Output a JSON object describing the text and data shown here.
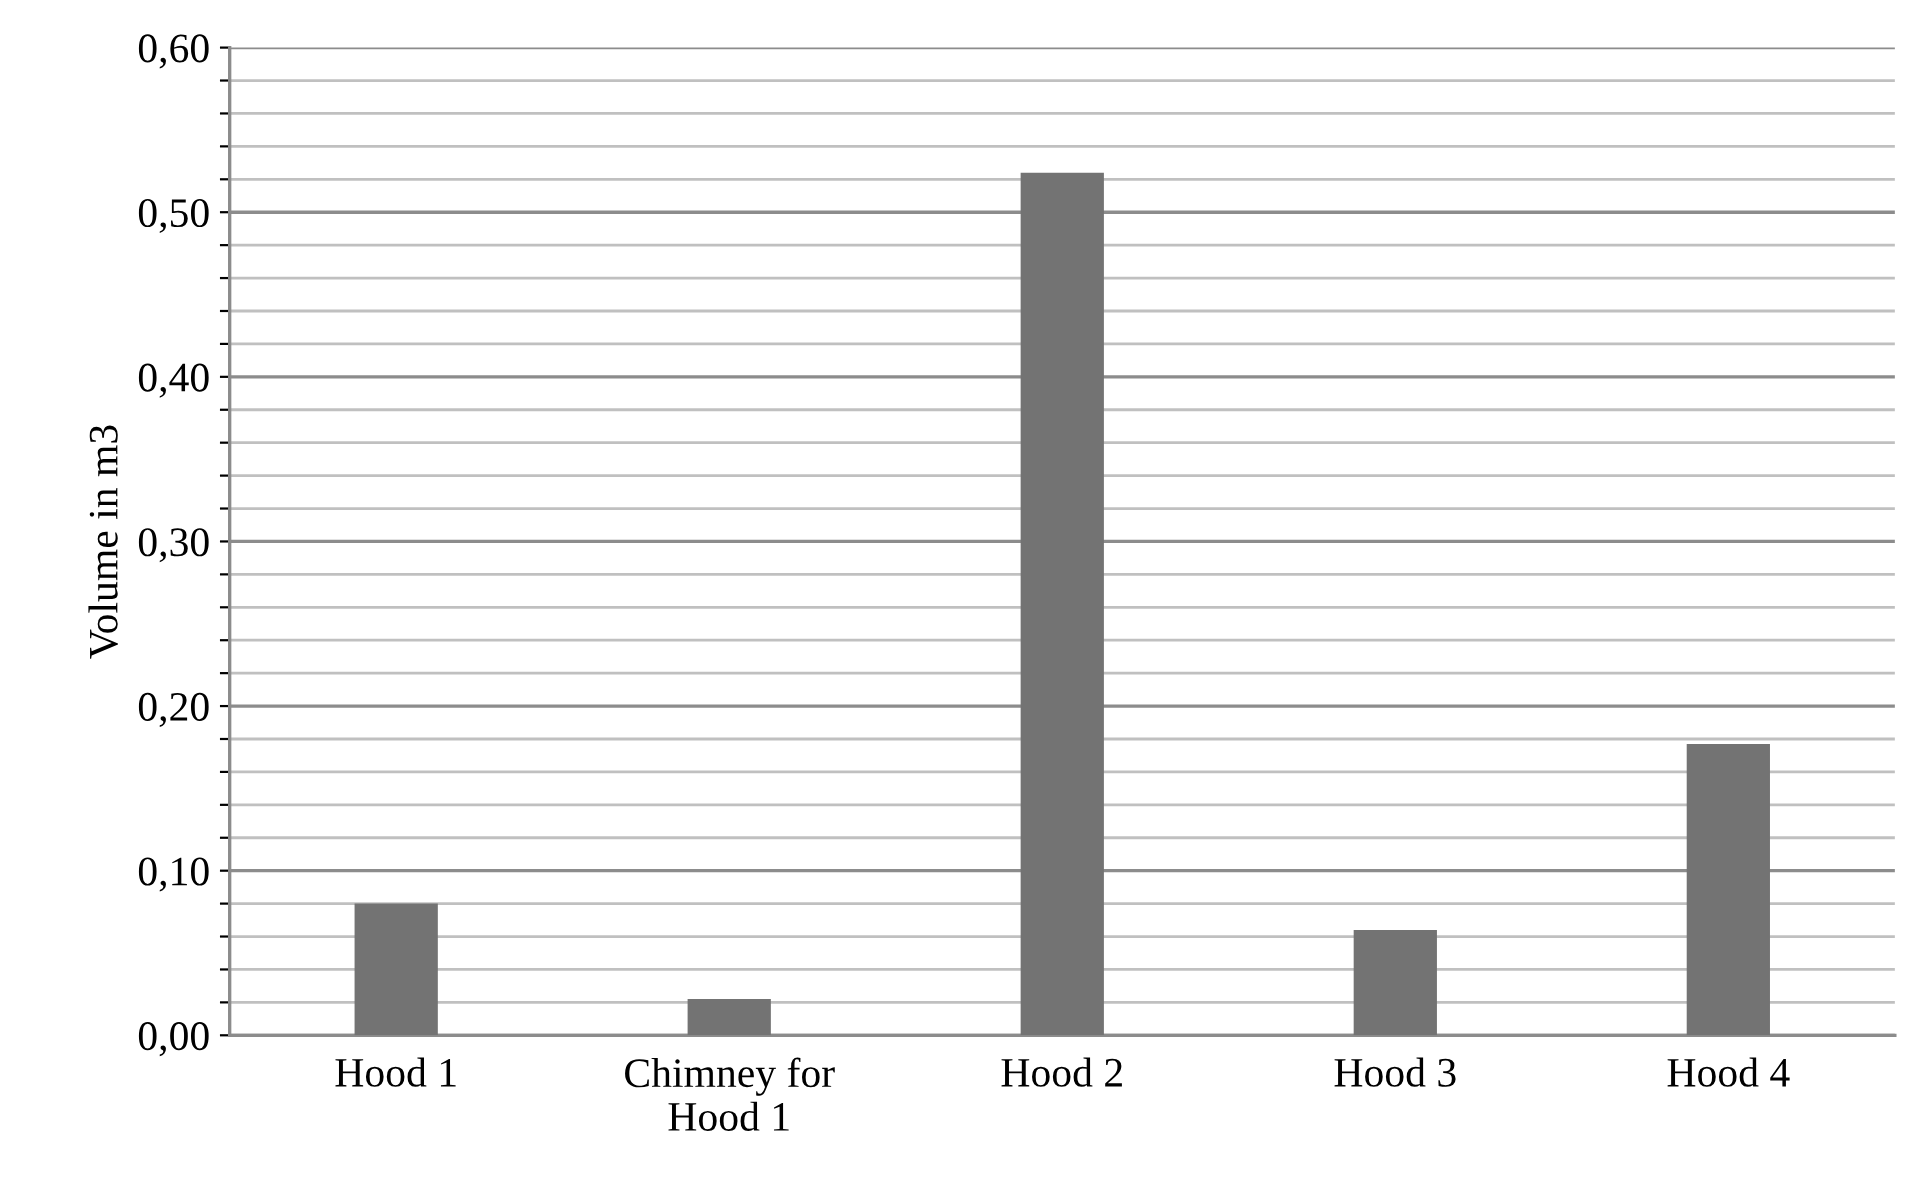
{
  "chart_data": {
    "type": "bar",
    "ylabel": "Volume in m3",
    "categories": [
      "Hood 1",
      "Chimney for\nHood 1",
      "Hood 2",
      "Hood 3",
      "Hood 4"
    ],
    "values": [
      0.08,
      0.022,
      0.524,
      0.064,
      0.177
    ],
    "color": "#737373",
    "ylim": [
      0,
      0.6
    ],
    "yticks": [
      {
        "value": 0,
        "label": "0,00"
      },
      {
        "value": 0.02,
        "label": null
      },
      {
        "value": 0.04,
        "label": null
      },
      {
        "value": 0.06,
        "label": null
      },
      {
        "value": 0.08,
        "label": null
      },
      {
        "value": 0.1,
        "label": "0,10"
      },
      {
        "value": 0.12,
        "label": null
      },
      {
        "value": 0.14,
        "label": null
      },
      {
        "value": 0.16,
        "label": null
      },
      {
        "value": 0.18,
        "label": null
      },
      {
        "value": 0.2,
        "label": "0,20"
      },
      {
        "value": 0.22,
        "label": null
      },
      {
        "value": 0.24,
        "label": null
      },
      {
        "value": 0.26,
        "label": null
      },
      {
        "value": 0.28,
        "label": null
      },
      {
        "value": 0.3,
        "label": "0,30"
      },
      {
        "value": 0.32,
        "label": null
      },
      {
        "value": 0.34,
        "label": null
      },
      {
        "value": 0.36,
        "label": null
      },
      {
        "value": 0.38,
        "label": null
      },
      {
        "value": 0.4,
        "label": "0,40"
      },
      {
        "value": 0.42,
        "label": null
      },
      {
        "value": 0.44,
        "label": null
      },
      {
        "value": 0.46,
        "label": null
      },
      {
        "value": 0.48,
        "label": null
      },
      {
        "value": 0.5,
        "label": "0,50"
      },
      {
        "value": 0.52,
        "label": null
      },
      {
        "value": 0.54,
        "label": null
      },
      {
        "value": 0.56,
        "label": null
      },
      {
        "value": 0.58,
        "label": null
      },
      {
        "value": 0.6,
        "label": "0,60"
      }
    ],
    "grid": "y",
    "legend": false
  }
}
